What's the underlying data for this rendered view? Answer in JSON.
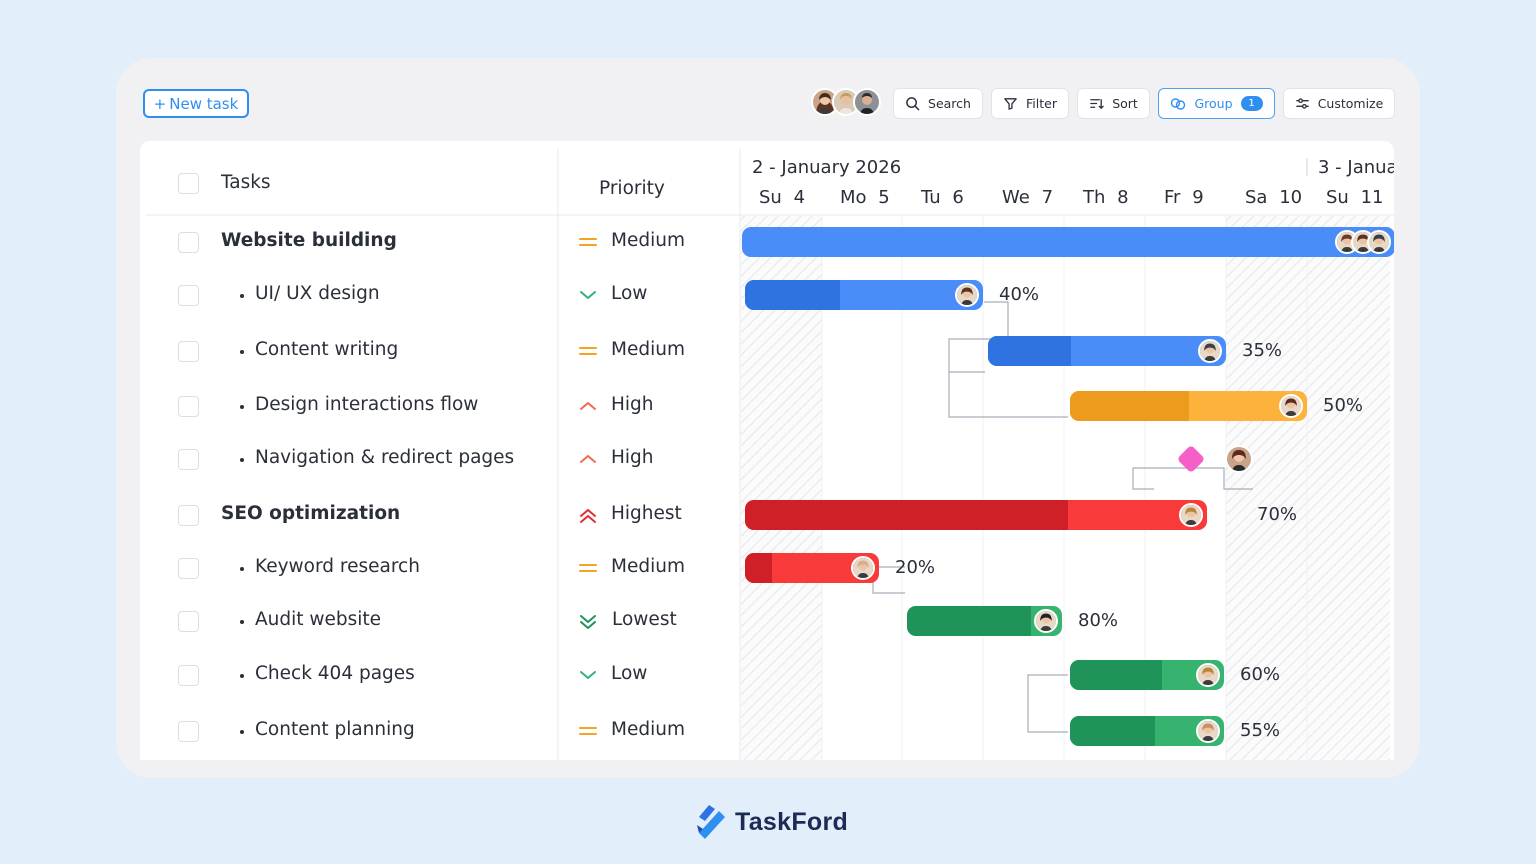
{
  "toolbar": {
    "new_task_label": "New task",
    "new_task_icon": "plus-icon",
    "search_label": "Search",
    "filter_label": "Filter",
    "sort_label": "Sort",
    "group_label": "Group",
    "group_count": "1",
    "customize_label": "Customize"
  },
  "table": {
    "tasks_header": "Tasks",
    "priority_header": "Priority",
    "rows": [
      {
        "name": "Website building",
        "parent": true,
        "priority": "Medium"
      },
      {
        "name": "UI/ UX design",
        "parent": false,
        "priority": "Low"
      },
      {
        "name": "Content writing",
        "parent": false,
        "priority": "Medium"
      },
      {
        "name": "Design interactions flow",
        "parent": false,
        "priority": "High"
      },
      {
        "name": "Navigation & redirect pages",
        "parent": false,
        "priority": "High"
      },
      {
        "name": "SEO optimization",
        "parent": true,
        "priority": "Highest"
      },
      {
        "name": "Keyword research",
        "parent": false,
        "priority": "Medium"
      },
      {
        "name": "Audit website",
        "parent": false,
        "priority": "Lowest"
      },
      {
        "name": "Check 404 pages",
        "parent": false,
        "priority": "Low"
      },
      {
        "name": "Content planning",
        "parent": false,
        "priority": "Medium"
      }
    ]
  },
  "timeline": {
    "week_label": "2 - January 2026",
    "next_week_label": "3 - Janua",
    "days": [
      {
        "dow": "Su",
        "num": "4"
      },
      {
        "dow": "Mo",
        "num": "5"
      },
      {
        "dow": "Tu",
        "num": "6"
      },
      {
        "dow": "We",
        "num": "7"
      },
      {
        "dow": "Th",
        "num": "8"
      },
      {
        "dow": "Fr",
        "num": "9"
      },
      {
        "dow": "Sa",
        "num": "10"
      },
      {
        "dow": "Su",
        "num": "11"
      }
    ],
    "bars": [
      {
        "task": "Website building",
        "start_day": 4,
        "end_day": 12,
        "progress_label": ""
      },
      {
        "task": "UI/ UX design",
        "start_day": 4,
        "end_day": 7,
        "progress": 0.4,
        "progress_label": "40%"
      },
      {
        "task": "Content writing",
        "start_day": 7,
        "end_day": 10,
        "progress": 0.35,
        "progress_label": "35%"
      },
      {
        "task": "Design interactions flow",
        "start_day": 8,
        "end_day": 11,
        "progress": 0.5,
        "progress_label": "50%"
      },
      {
        "task": "Navigation & redirect pages",
        "milestone_day": 9,
        "progress_label": ""
      },
      {
        "task": "SEO optimization",
        "start_day": 4,
        "end_day": 10,
        "progress": 0.7,
        "progress_label": "70%"
      },
      {
        "task": "Keyword research",
        "start_day": 4,
        "end_day": 6,
        "progress": 0.2,
        "progress_label": "20%"
      },
      {
        "task": "Audit website",
        "start_day": 6,
        "end_day": 8,
        "progress": 0.8,
        "progress_label": "80%"
      },
      {
        "task": "Check 404 pages",
        "start_day": 8,
        "end_day": 10,
        "progress": 0.6,
        "progress_label": "60%"
      },
      {
        "task": "Content planning",
        "start_day": 8,
        "end_day": 10,
        "progress": 0.55,
        "progress_label": "55%"
      }
    ]
  },
  "colors": {
    "blue": "#4b8df8",
    "blue_dark": "#2e73e0",
    "orange": "#fdb23c",
    "orange_dark": "#ed9b1c",
    "red": "#f83a3a",
    "red_dark": "#d02027",
    "green": "#36b36e",
    "green_dark": "#1f935a",
    "milestone": "#f55fc7",
    "accent": "#2f8ff0"
  },
  "brand": {
    "name": "TaskFord"
  }
}
